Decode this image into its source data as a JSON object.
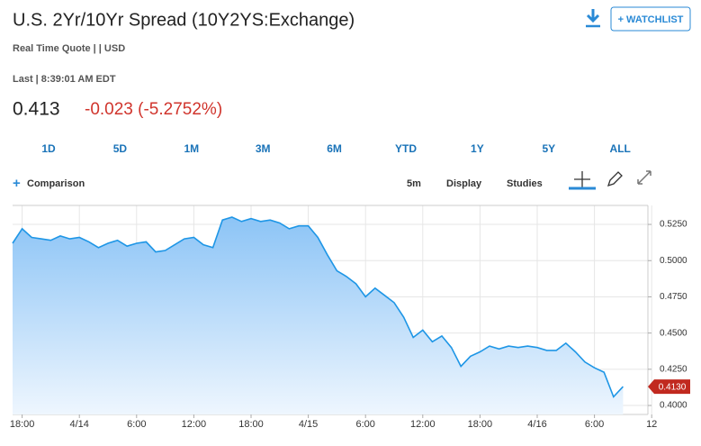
{
  "quote": {
    "title": "U.S. 2Yr/10Yr Spread (10Y2YS:Exchange)",
    "subtitle": "Real Time Quote | | USD",
    "last": "Last | 8:39:01 AM EDT",
    "price": "0.413",
    "change": "-0.023 (-5.2752%)",
    "watchlist": "+ WATCHLIST",
    "ranges": [
      "1D",
      "5D",
      "1M",
      "3M",
      "6M",
      "YTD",
      "1Y",
      "5Y",
      "ALL"
    ],
    "comparison": "Comparison",
    "interval": "5m",
    "display": "Display",
    "studies": "Studies"
  },
  "chart_data": {
    "type": "area",
    "color": "#1e96e6",
    "categories": [
      null,
      "18:00",
      null,
      null,
      null,
      null,
      null,
      "4/14",
      null,
      null,
      null,
      null,
      null,
      "6:00",
      null,
      null,
      null,
      null,
      null,
      "12:00",
      null,
      null,
      null,
      null,
      null,
      "18:00",
      null,
      null,
      null,
      null,
      null,
      "4/15",
      null,
      null,
      null,
      null,
      null,
      "6:00",
      null,
      null,
      null,
      null,
      null,
      "12:00",
      null,
      null,
      null,
      null,
      null,
      "18:00",
      null,
      null,
      null,
      null,
      null,
      "4/16",
      null,
      null,
      null,
      null,
      null,
      "6:00",
      null,
      null,
      null,
      null,
      null,
      "12"
    ],
    "values": [
      0.512,
      0.522,
      0.516,
      0.515,
      0.514,
      0.517,
      0.515,
      0.516,
      0.513,
      0.509,
      0.512,
      0.514,
      0.51,
      0.512,
      0.513,
      0.506,
      0.507,
      0.511,
      0.515,
      0.516,
      0.511,
      0.509,
      0.528,
      0.53,
      0.527,
      0.529,
      0.527,
      0.528,
      0.526,
      0.522,
      0.524,
      0.524,
      0.516,
      0.504,
      0.493,
      0.489,
      0.484,
      0.475,
      0.481,
      0.476,
      0.471,
      0.461,
      0.447,
      0.452,
      0.444,
      0.448,
      0.44,
      0.427,
      0.434,
      0.437,
      0.441,
      0.439,
      0.441,
      0.44,
      0.441,
      0.44,
      0.438,
      0.438,
      0.443,
      0.437,
      0.43,
      0.426,
      0.423,
      0.406,
      0.413,
      null,
      null,
      null
    ],
    "ylim": [
      0.3938,
      0.5381
    ],
    "yticks": [
      {
        "value": 0.4,
        "label": "0.4000"
      },
      {
        "value": 0.425,
        "label": "0.4250"
      },
      {
        "value": 0.45,
        "label": "0.4500"
      },
      {
        "value": 0.475,
        "label": "0.4750"
      },
      {
        "value": 0.5,
        "label": "0.5000"
      },
      {
        "value": 0.525,
        "label": "0.5250"
      }
    ],
    "marker": {
      "value": 0.413,
      "label": "0.4130"
    },
    "grid": true
  }
}
